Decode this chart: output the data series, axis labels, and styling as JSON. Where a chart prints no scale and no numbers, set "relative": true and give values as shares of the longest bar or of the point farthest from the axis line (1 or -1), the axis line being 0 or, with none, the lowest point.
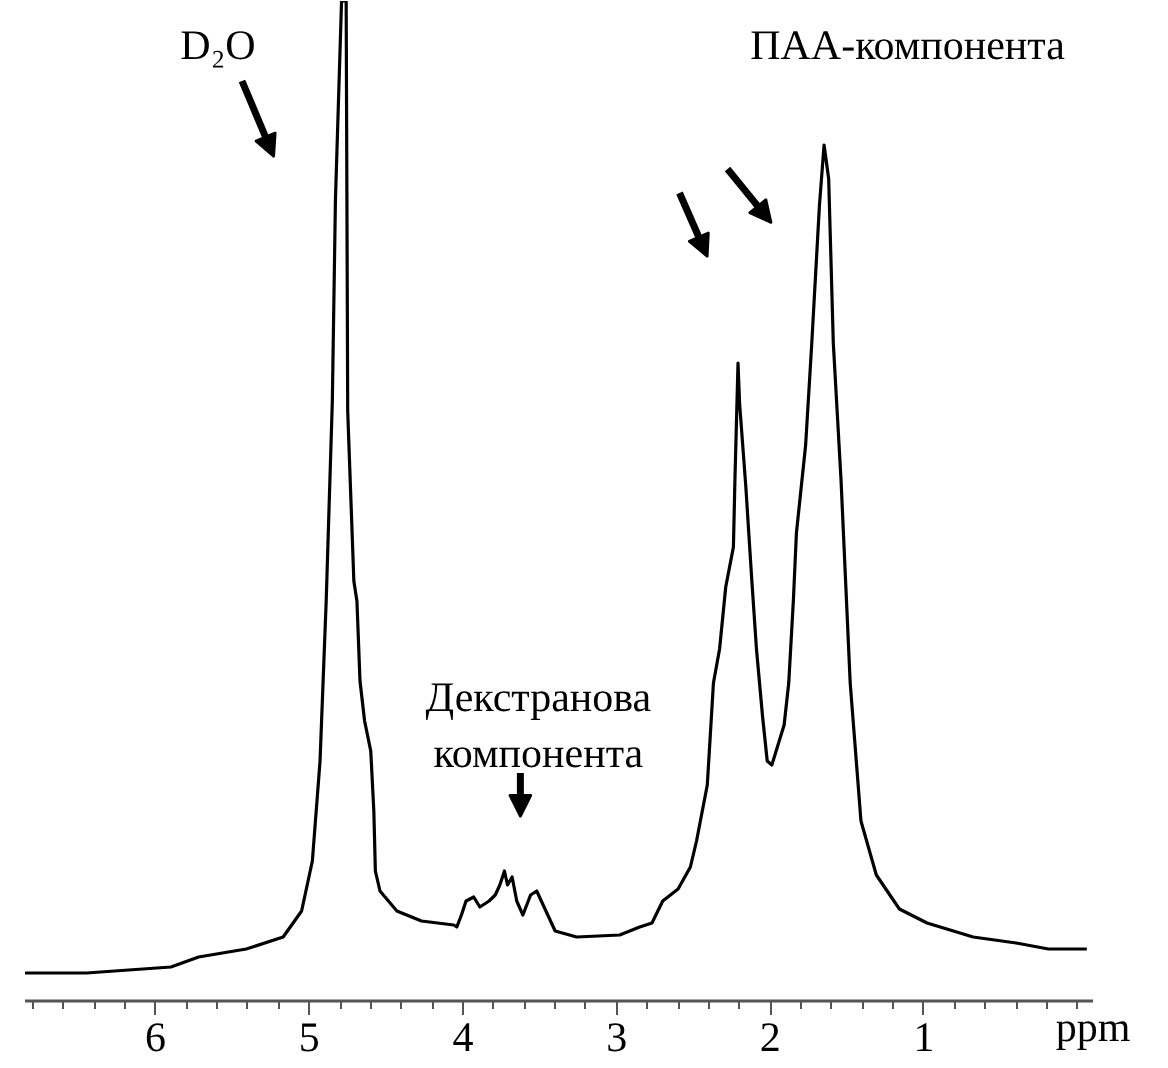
{
  "chart_data": {
    "type": "line",
    "relative": true,
    "grid": false,
    "xlabel": "ppm",
    "xlim": [
      6.85,
      -0.1
    ],
    "xticks": [
      6,
      5,
      4,
      3,
      2,
      1,
      {
        "value": 6.8,
        "label": null
      },
      {
        "value": 6.6,
        "label": null
      },
      {
        "value": 6.4,
        "label": null
      },
      {
        "value": 6.2,
        "label": null
      },
      {
        "value": 5.8,
        "label": null
      },
      {
        "value": 5.6,
        "label": null
      },
      {
        "value": 5.4,
        "label": null
      },
      {
        "value": 5.2,
        "label": null
      },
      {
        "value": 4.8,
        "label": null
      },
      {
        "value": 4.6,
        "label": null
      },
      {
        "value": 4.4,
        "label": null
      },
      {
        "value": 4.2,
        "label": null
      },
      {
        "value": 3.8,
        "label": null
      },
      {
        "value": 3.6,
        "label": null
      },
      {
        "value": 3.4,
        "label": null
      },
      {
        "value": 3.2,
        "label": null
      },
      {
        "value": 2.8,
        "label": null
      },
      {
        "value": 2.6,
        "label": null
      },
      {
        "value": 2.4,
        "label": null
      },
      {
        "value": 2.2,
        "label": null
      },
      {
        "value": 1.8,
        "label": null
      },
      {
        "value": 1.6,
        "label": null
      },
      {
        "value": 1.4,
        "label": null
      },
      {
        "value": 1.2,
        "label": null
      },
      {
        "value": 0.8,
        "label": null
      },
      {
        "value": 0.6,
        "label": null
      },
      {
        "value": 0.4,
        "label": null
      },
      {
        "value": 0.2,
        "label": null
      },
      {
        "value": 0,
        "label": null
      }
    ],
    "annotations": [
      "D₂O",
      "Декстранова\nкомпонента",
      "ПАА-компонента"
    ],
    "series": [
      {
        "color": "#000000",
        "x": [
          6.85,
          6.45,
          5.9,
          5.72,
          5.41,
          5.17,
          5.05,
          4.98,
          4.93,
          4.89,
          4.85,
          4.83,
          4.79,
          4.76,
          4.75,
          4.71,
          4.69,
          4.67,
          4.64,
          4.6,
          4.58,
          4.57,
          4.54,
          4.43,
          4.27,
          4.06,
          4.04,
          4.01,
          3.98,
          3.93,
          3.89,
          3.83,
          3.79,
          3.76,
          3.73,
          3.71,
          3.68,
          3.65,
          3.61,
          3.56,
          3.52,
          3.49,
          3.4,
          3.26,
          2.98,
          2.85,
          2.77,
          2.7,
          2.6,
          2.52,
          2.48,
          2.41,
          2.37,
          2.33,
          2.29,
          2.24,
          2.23,
          2.21,
          2.2,
          2.16,
          2.12,
          2.09,
          2.05,
          2.02,
          1.99,
          1.91,
          1.88,
          1.85,
          1.83,
          1.77,
          1.73,
          1.68,
          1.66,
          1.65,
          1.62,
          1.59,
          1.54,
          1.48,
          1.41,
          1.31,
          1.16,
          0.98,
          0.68,
          0.4,
          0.19,
          -0.06
        ],
        "values": [
          0.028,
          0.028,
          0.034,
          0.044,
          0.052,
          0.064,
          0.09,
          0.14,
          0.24,
          0.4,
          0.6,
          0.8,
          1.0,
          1.0,
          0.59,
          0.42,
          0.4,
          0.32,
          0.28,
          0.25,
          0.19,
          0.13,
          0.11,
          0.09,
          0.08,
          0.076,
          0.074,
          0.086,
          0.1,
          0.104,
          0.094,
          0.1,
          0.106,
          0.116,
          0.13,
          0.116,
          0.124,
          0.1,
          0.086,
          0.106,
          0.11,
          0.1,
          0.07,
          0.064,
          0.066,
          0.074,
          0.078,
          0.1,
          0.112,
          0.134,
          0.16,
          0.216,
          0.318,
          0.352,
          0.414,
          0.454,
          0.522,
          0.638,
          0.598,
          0.516,
          0.42,
          0.352,
          0.284,
          0.24,
          0.236,
          0.276,
          0.318,
          0.4,
          0.468,
          0.556,
          0.658,
          0.796,
          0.836,
          0.856,
          0.822,
          0.658,
          0.522,
          0.318,
          0.18,
          0.126,
          0.092,
          0.078,
          0.064,
          0.058,
          0.052,
          0.052
        ]
      }
    ]
  }
}
